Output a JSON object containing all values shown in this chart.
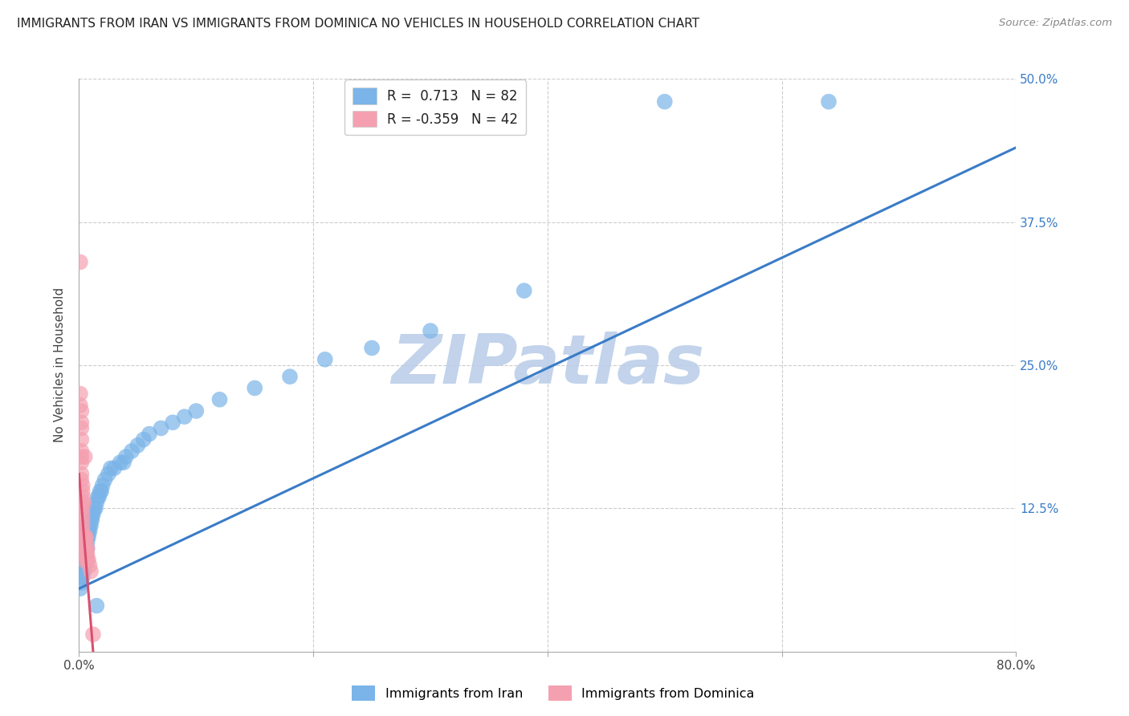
{
  "title": "IMMIGRANTS FROM IRAN VS IMMIGRANTS FROM DOMINICA NO VEHICLES IN HOUSEHOLD CORRELATION CHART",
  "source": "Source: ZipAtlas.com",
  "ylabel": "No Vehicles in Household",
  "xlim": [
    0.0,
    0.8
  ],
  "ylim": [
    0.0,
    0.5
  ],
  "xticks": [
    0.0,
    0.2,
    0.4,
    0.6,
    0.8
  ],
  "yticks": [
    0.0,
    0.125,
    0.25,
    0.375,
    0.5
  ],
  "xticklabels": [
    "0.0%",
    "",
    "",
    "",
    "80.0%"
  ],
  "yticklabels_right": [
    "",
    "12.5%",
    "25.0%",
    "37.5%",
    "50.0%"
  ],
  "iran_R": 0.713,
  "iran_N": 82,
  "dominica_R": -0.359,
  "dominica_N": 42,
  "iran_color": "#7ab4e8",
  "dominica_color": "#f4a0b0",
  "iran_line_color": "#3a7cc7",
  "dominica_line_color": "#d94f6e",
  "legend_iran_label": "Immigrants from Iran",
  "legend_dominica_label": "Immigrants from Dominica",
  "watermark": "ZIPatlas",
  "watermark_color_zip": "#b8d4f0",
  "watermark_color_atlas": "#c8a0d0",
  "background_color": "#ffffff",
  "grid_color": "#cccccc",
  "title_fontsize": 11,
  "iran_scatter": [
    [
      0.001,
      0.055
    ],
    [
      0.001,
      0.07
    ],
    [
      0.001,
      0.08
    ],
    [
      0.002,
      0.065
    ],
    [
      0.002,
      0.075
    ],
    [
      0.002,
      0.08
    ],
    [
      0.002,
      0.09
    ],
    [
      0.002,
      0.095
    ],
    [
      0.002,
      0.06
    ],
    [
      0.002,
      0.07
    ],
    [
      0.003,
      0.07
    ],
    [
      0.003,
      0.08
    ],
    [
      0.003,
      0.09
    ],
    [
      0.003,
      0.085
    ],
    [
      0.003,
      0.095
    ],
    [
      0.003,
      0.075
    ],
    [
      0.003,
      0.065
    ],
    [
      0.004,
      0.08
    ],
    [
      0.004,
      0.085
    ],
    [
      0.004,
      0.09
    ],
    [
      0.004,
      0.1
    ],
    [
      0.004,
      0.075
    ],
    [
      0.004,
      0.07
    ],
    [
      0.005,
      0.085
    ],
    [
      0.005,
      0.09
    ],
    [
      0.005,
      0.095
    ],
    [
      0.005,
      0.1
    ],
    [
      0.005,
      0.08
    ],
    [
      0.005,
      0.075
    ],
    [
      0.006,
      0.09
    ],
    [
      0.006,
      0.095
    ],
    [
      0.006,
      0.1
    ],
    [
      0.006,
      0.105
    ],
    [
      0.006,
      0.085
    ],
    [
      0.007,
      0.095
    ],
    [
      0.007,
      0.1
    ],
    [
      0.007,
      0.105
    ],
    [
      0.007,
      0.11
    ],
    [
      0.007,
      0.09
    ],
    [
      0.008,
      0.1
    ],
    [
      0.008,
      0.105
    ],
    [
      0.008,
      0.11
    ],
    [
      0.009,
      0.105
    ],
    [
      0.009,
      0.11
    ],
    [
      0.01,
      0.11
    ],
    [
      0.01,
      0.115
    ],
    [
      0.011,
      0.115
    ],
    [
      0.011,
      0.12
    ],
    [
      0.012,
      0.12
    ],
    [
      0.013,
      0.125
    ],
    [
      0.014,
      0.125
    ],
    [
      0.015,
      0.13
    ],
    [
      0.016,
      0.135
    ],
    [
      0.017,
      0.135
    ],
    [
      0.018,
      0.14
    ],
    [
      0.019,
      0.14
    ],
    [
      0.02,
      0.145
    ],
    [
      0.022,
      0.15
    ],
    [
      0.025,
      0.155
    ],
    [
      0.027,
      0.16
    ],
    [
      0.03,
      0.16
    ],
    [
      0.035,
      0.165
    ],
    [
      0.038,
      0.165
    ],
    [
      0.04,
      0.17
    ],
    [
      0.045,
      0.175
    ],
    [
      0.05,
      0.18
    ],
    [
      0.055,
      0.185
    ],
    [
      0.06,
      0.19
    ],
    [
      0.07,
      0.195
    ],
    [
      0.08,
      0.2
    ],
    [
      0.09,
      0.205
    ],
    [
      0.1,
      0.21
    ],
    [
      0.12,
      0.22
    ],
    [
      0.15,
      0.23
    ],
    [
      0.18,
      0.24
    ],
    [
      0.21,
      0.255
    ],
    [
      0.25,
      0.265
    ],
    [
      0.3,
      0.28
    ],
    [
      0.38,
      0.315
    ],
    [
      0.5,
      0.48
    ],
    [
      0.64,
      0.48
    ],
    [
      0.015,
      0.04
    ]
  ],
  "dominica_scatter": [
    [
      0.001,
      0.34
    ],
    [
      0.001,
      0.225
    ],
    [
      0.001,
      0.215
    ],
    [
      0.002,
      0.21
    ],
    [
      0.002,
      0.2
    ],
    [
      0.002,
      0.195
    ],
    [
      0.002,
      0.185
    ],
    [
      0.002,
      0.175
    ],
    [
      0.002,
      0.17
    ],
    [
      0.002,
      0.165
    ],
    [
      0.002,
      0.155
    ],
    [
      0.002,
      0.15
    ],
    [
      0.003,
      0.145
    ],
    [
      0.003,
      0.14
    ],
    [
      0.003,
      0.135
    ],
    [
      0.003,
      0.13
    ],
    [
      0.003,
      0.125
    ],
    [
      0.003,
      0.12
    ],
    [
      0.003,
      0.115
    ],
    [
      0.003,
      0.11
    ],
    [
      0.003,
      0.105
    ],
    [
      0.003,
      0.1
    ],
    [
      0.004,
      0.13
    ],
    [
      0.004,
      0.1
    ],
    [
      0.004,
      0.095
    ],
    [
      0.004,
      0.09
    ],
    [
      0.004,
      0.085
    ],
    [
      0.004,
      0.08
    ],
    [
      0.005,
      0.17
    ],
    [
      0.005,
      0.1
    ],
    [
      0.005,
      0.095
    ],
    [
      0.005,
      0.09
    ],
    [
      0.006,
      0.1
    ],
    [
      0.006,
      0.095
    ],
    [
      0.006,
      0.09
    ],
    [
      0.007,
      0.085
    ],
    [
      0.007,
      0.09
    ],
    [
      0.007,
      0.08
    ],
    [
      0.008,
      0.08
    ],
    [
      0.009,
      0.075
    ],
    [
      0.01,
      0.07
    ],
    [
      0.012,
      0.015
    ]
  ],
  "iran_line_x0": 0.0,
  "iran_line_y0": 0.055,
  "iran_line_x1": 0.8,
  "iran_line_y1": 0.44,
  "dominica_line_x0": 0.0,
  "dominica_line_y0": 0.155,
  "dominica_line_x1": 0.012,
  "dominica_line_y1": 0.0
}
